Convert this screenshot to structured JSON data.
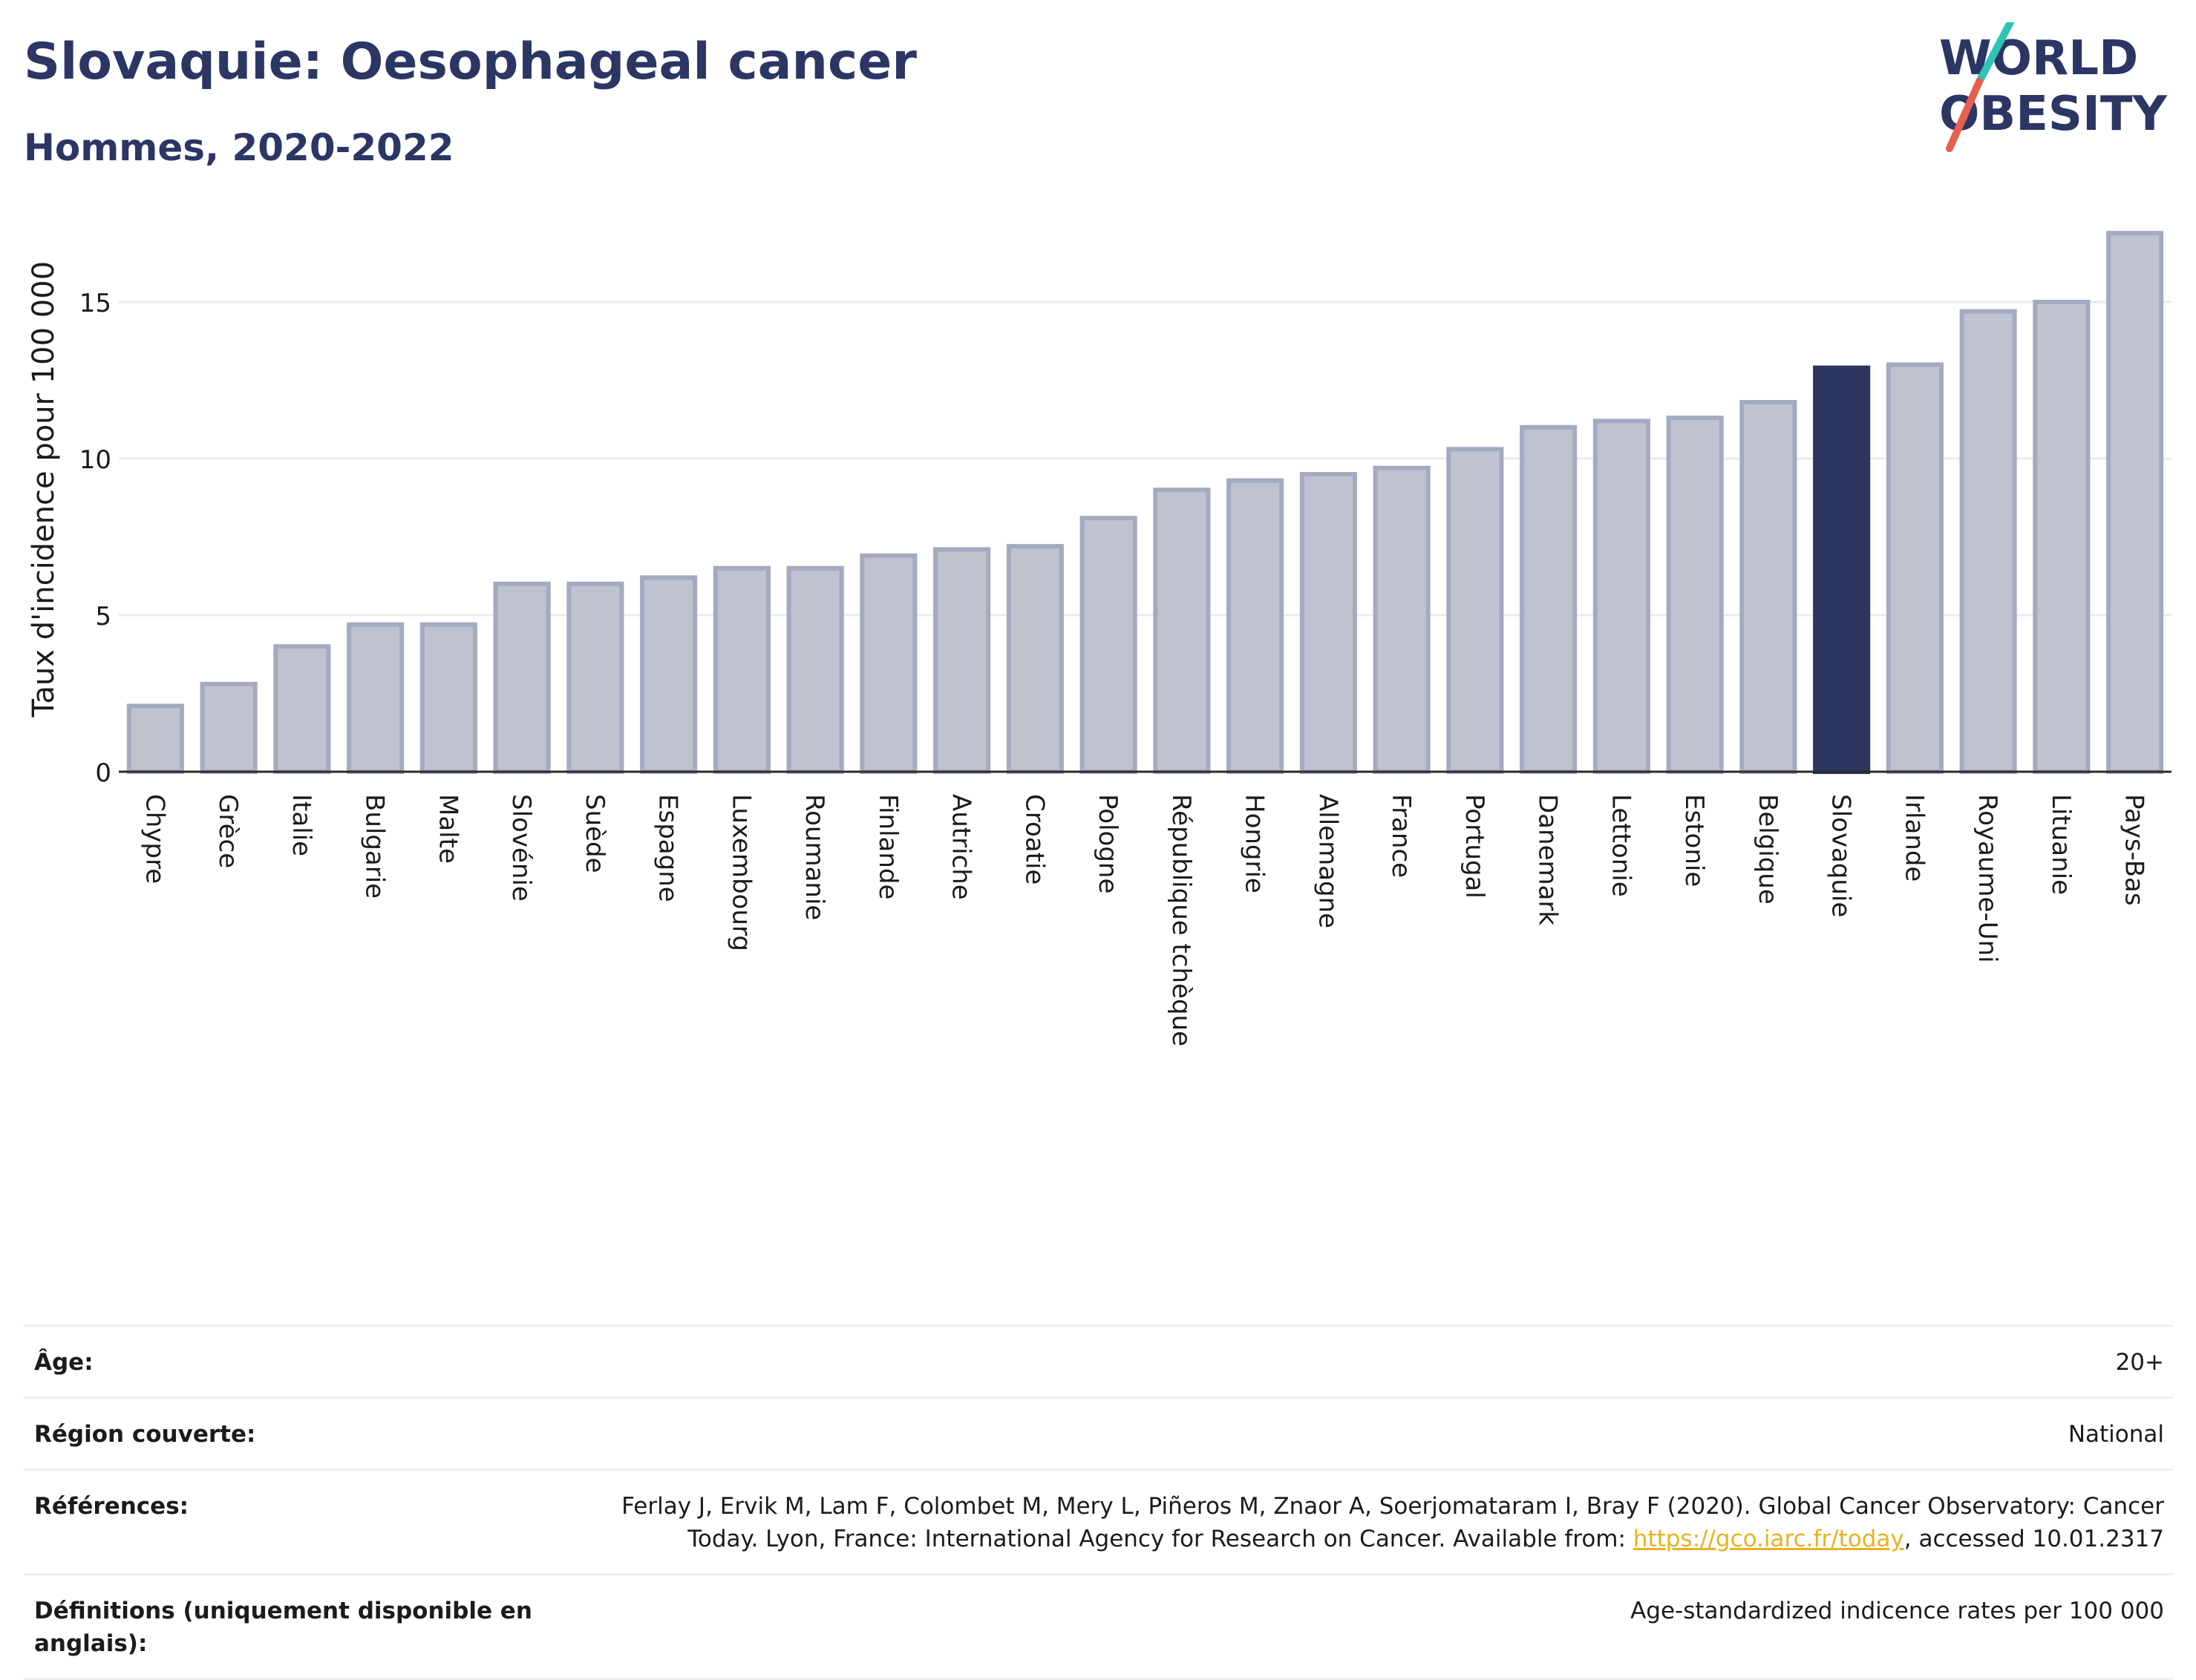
{
  "header": {
    "title": "Slovaquie: Oesophageal cancer",
    "subtitle": "Hommes, 2020-2022"
  },
  "logo": {
    "line1": "WORLD",
    "line2": "OBESITY",
    "text_color": "#2b3664",
    "slash_colors": [
      "#2ec4b6",
      "#e8604c"
    ]
  },
  "chart_data": {
    "type": "bar",
    "title": "Slovaquie: Oesophageal cancer",
    "subtitle": "Hommes, 2020-2022",
    "xlabel": "",
    "ylabel": "Taux d'incidence pour 100 000",
    "ylim": [
      0,
      18
    ],
    "yticks": [
      0,
      5,
      10,
      15
    ],
    "grid": true,
    "highlight": "Slovaquie",
    "colors": {
      "default_fill": "#bfc3d0",
      "default_stroke": "#a4aac0",
      "highlight_fill": "#2b3660"
    },
    "categories": [
      "Chypre",
      "Grèce",
      "Italie",
      "Bulgarie",
      "Malte",
      "Slovénie",
      "Suède",
      "Espagne",
      "Luxembourg",
      "Roumanie",
      "Finlande",
      "Autriche",
      "Croatie",
      "Pologne",
      "République tchèque",
      "Hongrie",
      "Allemagne",
      "France",
      "Portugal",
      "Danemark",
      "Lettonie",
      "Estonie",
      "Belgique",
      "Slovaquie",
      "Irlande",
      "Royaume-Uni",
      "Lituanie",
      "Pays-Bas"
    ],
    "values": [
      2.1,
      2.8,
      4.0,
      4.7,
      4.7,
      6.0,
      6.0,
      6.2,
      6.5,
      6.5,
      6.9,
      7.1,
      7.2,
      8.1,
      9.0,
      9.3,
      9.5,
      9.7,
      10.3,
      11.0,
      11.2,
      11.3,
      11.8,
      12.9,
      13.0,
      14.7,
      15.0,
      17.2
    ]
  },
  "meta": [
    {
      "key": "Âge:",
      "value": "20+"
    },
    {
      "key": "Région couverte:",
      "value": "National"
    },
    {
      "key": "Références:",
      "value_line1": "Ferlay J, Ervik M, Lam F, Colombet M, Mery L, Piñeros M, Znaor A, Soerjomataram I, Bray F (2020). Global Cancer Observatory: Cancer",
      "value_line2_pre": "Today. Lyon, France: International Agency for Research on Cancer. Available from: ",
      "link": "https://gco.iarc.fr/today",
      "value_line2_post": ", accessed 10.01.2317"
    },
    {
      "key": "Définitions (uniquement disponible en anglais):",
      "value": "Age-standardized indicence rates per 100 000"
    }
  ]
}
